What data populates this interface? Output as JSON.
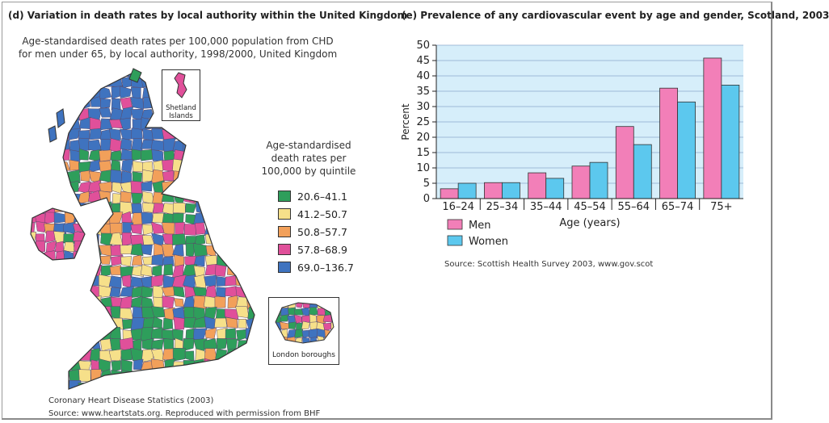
{
  "panel_d": {
    "title": "(d)  Variation in death rates by local authority within the United Kingdom",
    "subtitle_line1": "Age-standardised death rates per 100,000 population from CHD",
    "subtitle_line2": "for men under 65, by local authority, 1998/2000,  United Kingdom",
    "legend_title_1": "Age-standardised",
    "legend_title_2": "death rates per",
    "legend_title_3": "100,000 by quintile",
    "legend": [
      {
        "label": "20.6–41.1",
        "color": "#2e9e5b"
      },
      {
        "label": "41.2–50.7",
        "color": "#f6e08a"
      },
      {
        "label": "50.8–57.7",
        "color": "#f2a05a"
      },
      {
        "label": "57.8–68.9",
        "color": "#e0509a"
      },
      {
        "label": "69.0–136.7",
        "color": "#3f73bf"
      }
    ],
    "shetland_label_1": "Shetland",
    "shetland_label_2": "Islands",
    "london_label": "London boroughs",
    "source_1": "Coronary Heart Disease Statistics (2003)",
    "source_2": "Source:  www.heartstats.org. Reproduced with permission from BHF"
  },
  "panel_e": {
    "title": "(e)  Prevalence of any cardiovascular event by age and gender, Scotland, 2003",
    "source": "Source: Scottish Health Survey 2003, www.gov.scot"
  },
  "chart_data": {
    "type": "bar",
    "title": "(e)  Prevalence of any cardiovascular event by age and gender, Scotland, 2003",
    "xlabel": "Age (years)",
    "ylabel": "Percent",
    "categories": [
      "16–24",
      "25–34",
      "35–44",
      "45–54",
      "55–64",
      "65–74",
      "75+"
    ],
    "series": [
      {
        "name": "Men",
        "color": "#f27fb8",
        "values": [
          3.2,
          5.2,
          8.4,
          10.6,
          23.5,
          36.0,
          45.8
        ]
      },
      {
        "name": "Women",
        "color": "#5cc8ee",
        "values": [
          5.0,
          5.2,
          6.6,
          11.8,
          17.6,
          31.5,
          37.0
        ]
      }
    ],
    "ylim": [
      0,
      50
    ],
    "yticks": [
      0,
      5,
      10,
      15,
      20,
      25,
      30,
      35,
      40,
      45,
      50
    ],
    "grid": true,
    "plot_background": "#d6eefa",
    "legend_position": "below-left"
  }
}
